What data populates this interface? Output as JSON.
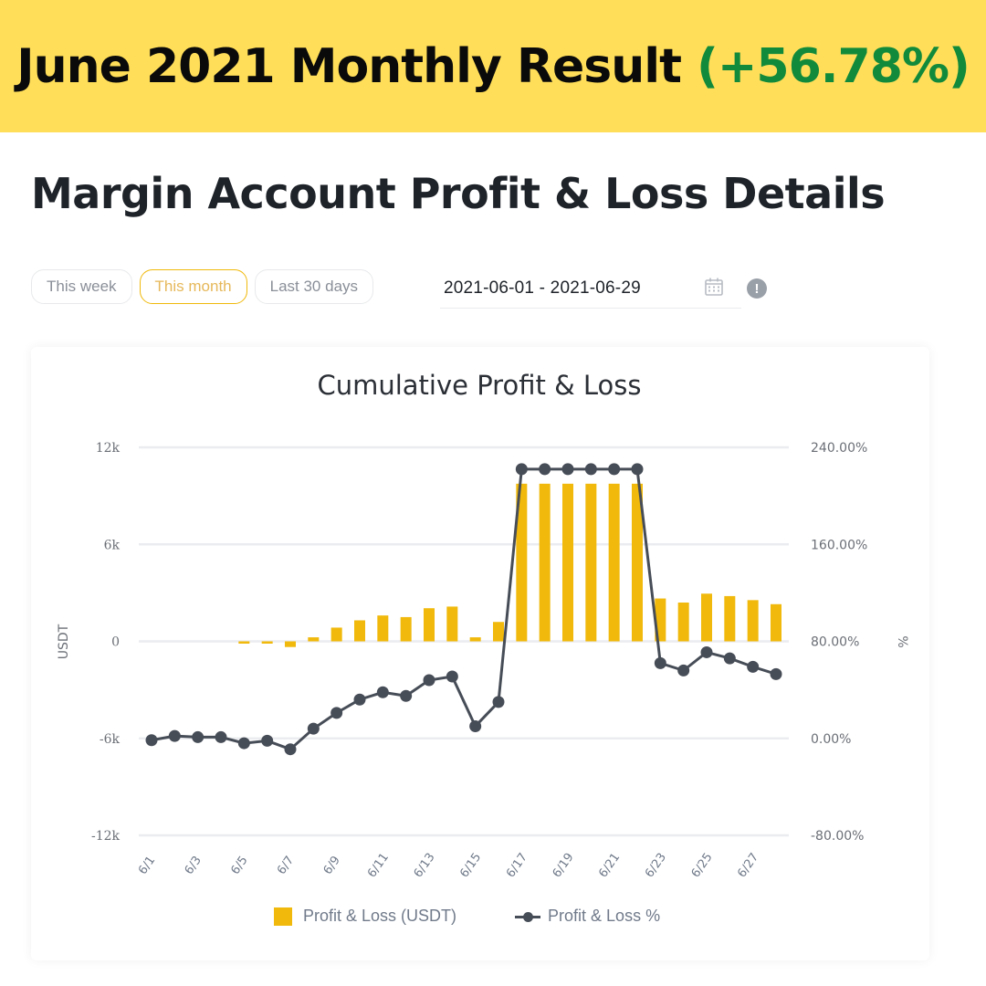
{
  "banner": {
    "title": "June 2021 Monthly Result",
    "result_pct": "(+56.78%)",
    "background_color": "#FFDE59",
    "pct_color": "#128a3b"
  },
  "page": {
    "title": "Margin Account Profit & Loss Details"
  },
  "filters": {
    "options": [
      {
        "label": "This week",
        "active": false
      },
      {
        "label": "This month",
        "active": true
      },
      {
        "label": "Last 30 days",
        "active": false
      }
    ],
    "date_range": "2021-06-01 - 2021-06-29",
    "calendar_icon": "calendar-icon",
    "info_icon": "info-icon",
    "info_glyph": "!"
  },
  "chart_data": {
    "type": "bar",
    "title": "Cumulative Profit & Loss",
    "xlabel": "",
    "ylabel": "USDT",
    "ylabel_right": "%",
    "ylim": [
      -12000,
      12000
    ],
    "ylim_right": [
      -80,
      240
    ],
    "yticks": [
      "12k",
      "6k",
      "0",
      "-6k",
      "-12k"
    ],
    "yticks_right": [
      "240.00%",
      "160.00%",
      "80.00%",
      "0.00%",
      "-80.00%"
    ],
    "grid": true,
    "legend_position": "bottom",
    "categories": [
      "6/1",
      "6/2",
      "6/3",
      "6/4",
      "6/5",
      "6/6",
      "6/7",
      "6/8",
      "6/9",
      "6/10",
      "6/11",
      "6/12",
      "6/13",
      "6/14",
      "6/15",
      "6/16",
      "6/17",
      "6/18",
      "6/19",
      "6/20",
      "6/21",
      "6/22",
      "6/23",
      "6/24",
      "6/25",
      "6/26",
      "6/27",
      "6/28"
    ],
    "xtick_labels": [
      "6/1",
      "6/3",
      "6/5",
      "6/7",
      "6/9",
      "6/11",
      "6/13",
      "6/15",
      "6/17",
      "6/19",
      "6/21",
      "6/23",
      "6/25",
      "6/27"
    ],
    "series": [
      {
        "name": "Profit & Loss (USDT)",
        "type": "bar",
        "axis": "left",
        "color": "#F0B90B",
        "values": [
          0,
          0,
          0,
          0,
          -100,
          -100,
          -350,
          250,
          850,
          1300,
          1600,
          1500,
          2050,
          2150,
          250,
          1200,
          9750,
          9750,
          9750,
          9750,
          9750,
          9750,
          2650,
          2400,
          2950,
          2800,
          2550,
          2300
        ]
      },
      {
        "name": "Profit & Loss %",
        "type": "line",
        "axis": "right",
        "color": "#474D57",
        "values": [
          -1.5,
          2,
          1,
          1,
          -4,
          -2,
          -9,
          8,
          21,
          32,
          38,
          35,
          48,
          51,
          10,
          30,
          222,
          222,
          222,
          222,
          222,
          222,
          62,
          56,
          71,
          66,
          59,
          53
        ]
      }
    ]
  },
  "legend": {
    "bar_label": "Profit & Loss (USDT)",
    "line_label": "Profit & Loss %"
  }
}
